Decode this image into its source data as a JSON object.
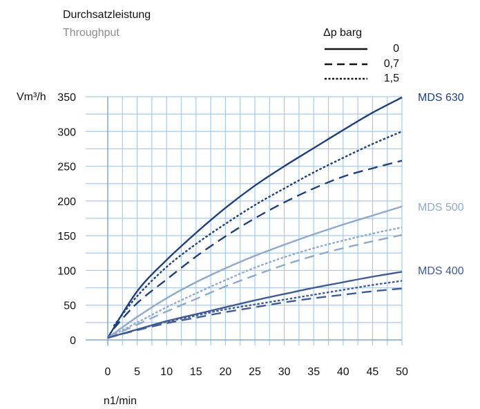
{
  "chart_data": {
    "type": "line",
    "title": "Durchsatzleistung",
    "subtitle": "Throughput",
    "xlabel": "n1/min",
    "ylabel": "Vm³/h",
    "xlim": [
      0,
      50
    ],
    "ylim": [
      0,
      350
    ],
    "x_ticks": [
      "0",
      "5",
      "10",
      "15",
      "20",
      "25",
      "30",
      "35",
      "40",
      "45",
      "50"
    ],
    "y_ticks": [
      "0",
      "50",
      "100",
      "150",
      "200",
      "250",
      "300",
      "350"
    ],
    "grid": true,
    "legend": {
      "title": "Δp barg",
      "placement": "top-right",
      "entries": [
        {
          "label": "0",
          "dash": "solid"
        },
        {
          "label": "0,7",
          "dash": "dashed"
        },
        {
          "label": "1,5",
          "dash": "dotted"
        }
      ]
    },
    "model_labels": [
      {
        "label": "MDS 630",
        "color": "#1f3f7a"
      },
      {
        "label": "MDS 500",
        "color": "#8ea9cc"
      },
      {
        "label": "MDS 400",
        "color": "#3f5a95"
      }
    ],
    "series": [
      {
        "model": "MDS 630",
        "pressure": "0",
        "dash": "solid",
        "color": "#1f3f7a",
        "x": [
          0,
          5,
          10,
          15,
          20,
          25,
          30,
          35,
          40,
          45,
          50
        ],
        "y": [
          3,
          70,
          115,
          154,
          190,
          222,
          250,
          276,
          302,
          327,
          349
        ]
      },
      {
        "model": "MDS 630",
        "pressure": "1,5",
        "dash": "dotted",
        "color": "#1f3f7a",
        "x": [
          1,
          5,
          10,
          15,
          20,
          25,
          30,
          35,
          40,
          45,
          50
        ],
        "y": [
          20,
          63,
          105,
          138,
          167,
          194,
          218,
          241,
          262,
          282,
          300
        ]
      },
      {
        "model": "MDS 630",
        "pressure": "0,7",
        "dash": "dashed",
        "color": "#1f3f7a",
        "x": [
          1,
          5,
          10,
          15,
          20,
          25,
          30,
          35,
          40,
          45,
          50
        ],
        "y": [
          16,
          53,
          87,
          120,
          149,
          175,
          198,
          218,
          235,
          247,
          258
        ]
      },
      {
        "model": "MDS 500",
        "pressure": "0",
        "dash": "solid",
        "color": "#8ea9cc",
        "x": [
          0,
          5,
          10,
          15,
          20,
          25,
          30,
          35,
          40,
          45,
          50
        ],
        "y": [
          3,
          33,
          60,
          83,
          103,
          121,
          137,
          152,
          166,
          179,
          192
        ]
      },
      {
        "model": "MDS 500",
        "pressure": "1,5",
        "dash": "dotted",
        "color": "#8ea9cc",
        "x": [
          0,
          5,
          10,
          15,
          20,
          25,
          30,
          35,
          40,
          45,
          50
        ],
        "y": [
          3,
          25,
          47,
          67,
          86,
          104,
          119,
          132,
          143,
          153,
          162
        ]
      },
      {
        "model": "MDS 500",
        "pressure": "0,7",
        "dash": "dashed",
        "color": "#8ea9cc",
        "x": [
          0,
          5,
          10,
          15,
          20,
          25,
          30,
          35,
          40,
          45,
          50
        ],
        "y": [
          3,
          22,
          41,
          59,
          77,
          93,
          108,
          121,
          132,
          142,
          151
        ]
      },
      {
        "model": "MDS 400",
        "pressure": "0",
        "dash": "solid",
        "color": "#3f5a95",
        "x": [
          0,
          5,
          10,
          15,
          20,
          25,
          30,
          35,
          40,
          45,
          50
        ],
        "y": [
          3,
          15,
          27,
          37,
          47,
          57,
          66,
          75,
          83,
          91,
          98
        ]
      },
      {
        "model": "MDS 400",
        "pressure": "1,5",
        "dash": "dotted",
        "color": "#3f5a95",
        "x": [
          0,
          5,
          10,
          15,
          20,
          25,
          30,
          35,
          40,
          45,
          50
        ],
        "y": [
          3,
          15,
          26,
          35,
          44,
          51,
          58,
          65,
          72,
          79,
          85
        ]
      },
      {
        "model": "MDS 400",
        "pressure": "0,7",
        "dash": "dashed",
        "color": "#3f5a95",
        "x": [
          0,
          5,
          10,
          15,
          20,
          25,
          30,
          35,
          40,
          45,
          50
        ],
        "y": [
          3,
          14,
          24,
          32,
          40,
          47,
          54,
          60,
          65,
          70,
          74
        ]
      }
    ]
  }
}
